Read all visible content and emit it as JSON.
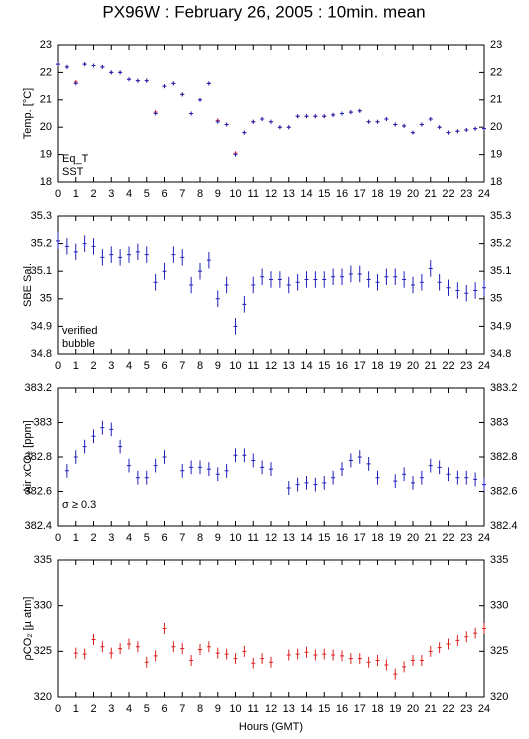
{
  "chart_data": [
    {
      "type": "scatter",
      "title": "PX96W : February 26, 2005 : 10min. mean",
      "ylabel": "Temp. [°C]",
      "x": [
        0,
        0.5,
        1,
        1.5,
        2,
        2.5,
        3,
        3.5,
        4,
        4.5,
        5,
        5.5,
        6,
        6.5,
        7,
        7.5,
        8,
        8.5,
        9,
        9.5,
        10,
        10.5,
        11,
        11.5,
        12,
        12.5,
        13,
        13.5,
        14,
        14.5,
        15,
        15.5,
        16,
        16.5,
        17,
        17.5,
        18,
        18.5,
        19,
        19.5,
        20,
        20.5,
        21,
        21.5,
        22,
        22.5,
        23,
        23.5,
        24
      ],
      "series": [
        {
          "name": "Eq_T",
          "color": "#dd2222",
          "values": [
            22.3,
            22.2,
            21.65,
            22.3,
            22.25,
            22.2,
            22.0,
            22.0,
            21.75,
            21.7,
            21.7,
            20.55,
            21.5,
            21.6,
            21.2,
            20.5,
            21.0,
            21.6,
            20.25,
            20.1,
            19.05,
            19.8,
            20.2,
            20.3,
            20.2,
            20.0,
            20.0,
            20.4,
            20.4,
            20.4,
            20.4,
            20.45,
            20.5,
            20.55,
            20.6,
            20.2,
            20.2,
            20.3,
            20.1,
            20.05,
            19.8,
            20.1,
            20.3,
            20.0,
            19.8,
            19.85,
            19.9,
            19.95,
            19.95
          ]
        },
        {
          "name": "SST",
          "color": "#2222bb",
          "values": [
            22.3,
            22.2,
            21.6,
            22.3,
            22.25,
            22.2,
            22.0,
            22.0,
            21.75,
            21.7,
            21.7,
            20.5,
            21.5,
            21.6,
            21.2,
            20.5,
            21.0,
            21.6,
            20.2,
            20.1,
            19.0,
            19.8,
            20.2,
            20.3,
            20.2,
            20.0,
            20.0,
            20.4,
            20.4,
            20.4,
            20.4,
            20.45,
            20.5,
            20.55,
            20.6,
            20.2,
            20.2,
            20.3,
            20.1,
            20.05,
            19.8,
            20.1,
            20.3,
            20.0,
            19.8,
            19.85,
            19.9,
            19.95,
            19.95
          ]
        }
      ],
      "xlim": [
        0,
        24
      ],
      "xticks": [
        0,
        1,
        2,
        3,
        4,
        5,
        6,
        7,
        8,
        9,
        10,
        11,
        12,
        13,
        14,
        15,
        16,
        17,
        18,
        19,
        20,
        21,
        22,
        23,
        24
      ],
      "ylim": [
        18,
        23
      ],
      "yticks": [
        18,
        19,
        20,
        21,
        22,
        23
      ],
      "legend": "lower left"
    },
    {
      "type": "errorbar",
      "ylabel": "SBE Sal.",
      "x": [
        0,
        0.5,
        1,
        1.5,
        2,
        2.5,
        3,
        3.5,
        4,
        4.5,
        5,
        5.5,
        6,
        6.5,
        7,
        7.5,
        8,
        8.5,
        9,
        9.5,
        10,
        10.5,
        11,
        11.5,
        12,
        12.5,
        13,
        13.5,
        14,
        14.5,
        15,
        15.5,
        16,
        16.5,
        17,
        17.5,
        18,
        18.5,
        19,
        19.5,
        20,
        20.5,
        21,
        21.5,
        22,
        22.5,
        23,
        23.5,
        24
      ],
      "series": [
        {
          "color": "#2222bb",
          "values": [
            35.21,
            35.19,
            35.17,
            35.2,
            35.19,
            35.15,
            35.16,
            35.15,
            35.16,
            35.17,
            35.16,
            35.06,
            35.1,
            35.16,
            35.15,
            35.05,
            35.1,
            35.14,
            35.0,
            35.05,
            34.9,
            34.98,
            35.05,
            35.08,
            35.07,
            35.07,
            35.05,
            35.06,
            35.07,
            35.07,
            35.07,
            35.08,
            35.08,
            35.09,
            35.09,
            35.07,
            35.06,
            35.08,
            35.08,
            35.07,
            35.05,
            35.06,
            35.11,
            35.06,
            35.04,
            35.03,
            35.02,
            35.03,
            35.04
          ],
          "errors": [
            0.03,
            0.03,
            0.03,
            0.03,
            0.03,
            0.03,
            0.03,
            0.03,
            0.03,
            0.03,
            0.03,
            0.03,
            0.03,
            0.03,
            0.03,
            0.03,
            0.03,
            0.03,
            0.03,
            0.03,
            0.03,
            0.03,
            0.03,
            0.03,
            0.03,
            0.03,
            0.03,
            0.03,
            0.03,
            0.03,
            0.03,
            0.03,
            0.03,
            0.03,
            0.03,
            0.03,
            0.03,
            0.03,
            0.03,
            0.03,
            0.03,
            0.03,
            0.03,
            0.03,
            0.03,
            0.03,
            0.03,
            0.03,
            0.03
          ]
        }
      ],
      "legend_entries": [
        {
          "label": "verified",
          "color": "#2222bb"
        },
        {
          "label": "bubble",
          "color": "#cc00cc"
        }
      ],
      "xlim": [
        0,
        24
      ],
      "xticks": [
        0,
        1,
        2,
        3,
        4,
        5,
        6,
        7,
        8,
        9,
        10,
        11,
        12,
        13,
        14,
        15,
        16,
        17,
        18,
        19,
        20,
        21,
        22,
        23,
        24
      ],
      "ylim": [
        34.8,
        35.3
      ],
      "yticks": [
        34.8,
        34.9,
        35,
        35.1,
        35.2,
        35.3
      ],
      "legend": "lower left"
    },
    {
      "type": "errorbar",
      "ylabel": "Air xCO₂ [ppm]",
      "annotation": "σ ≥ 0.3",
      "annotation_color": "#cc00cc",
      "x": [
        0,
        0.5,
        1,
        1.5,
        2,
        2.5,
        3,
        3.5,
        4,
        4.5,
        5,
        5.5,
        6,
        6.5,
        7,
        7.5,
        8,
        8.5,
        9,
        9.5,
        10,
        10.5,
        11,
        11.5,
        12,
        12.5,
        13,
        13.5,
        14,
        14.5,
        15,
        15.5,
        16,
        16.5,
        17,
        17.5,
        18,
        18.5,
        19,
        19.5,
        20,
        20.5,
        21,
        21.5,
        22,
        22.5,
        23,
        23.5,
        24
      ],
      "series": [
        {
          "color": "#2222bb",
          "values": [
            null,
            382.72,
            382.8,
            382.86,
            382.92,
            382.97,
            382.96,
            382.86,
            382.75,
            382.68,
            382.68,
            382.75,
            382.8,
            null,
            382.72,
            382.74,
            382.74,
            382.73,
            382.7,
            382.72,
            382.81,
            382.81,
            382.78,
            382.74,
            382.73,
            null,
            382.62,
            382.64,
            382.65,
            382.64,
            382.65,
            382.68,
            382.73,
            382.78,
            382.8,
            382.76,
            382.68,
            null,
            382.66,
            382.7,
            382.65,
            382.68,
            382.75,
            382.74,
            382.7,
            382.68,
            382.68,
            382.67,
            382.64
          ],
          "errors": [
            null,
            0.04,
            0.04,
            0.04,
            0.04,
            0.04,
            0.04,
            0.04,
            0.04,
            0.04,
            0.04,
            0.04,
            0.04,
            null,
            0.04,
            0.04,
            0.04,
            0.04,
            0.04,
            0.04,
            0.04,
            0.04,
            0.04,
            0.04,
            0.04,
            null,
            0.04,
            0.04,
            0.04,
            0.04,
            0.04,
            0.04,
            0.04,
            0.04,
            0.04,
            0.04,
            0.04,
            null,
            0.04,
            0.04,
            0.04,
            0.04,
            0.04,
            0.04,
            0.04,
            0.04,
            0.04,
            0.04,
            0.04
          ]
        }
      ],
      "xlim": [
        0,
        24
      ],
      "xticks": [
        0,
        1,
        2,
        3,
        4,
        5,
        6,
        7,
        8,
        9,
        10,
        11,
        12,
        13,
        14,
        15,
        16,
        17,
        18,
        19,
        20,
        21,
        22,
        23,
        24
      ],
      "ylim": [
        382.4,
        383.2
      ],
      "yticks": [
        382.4,
        382.6,
        382.8,
        383,
        383.2
      ]
    },
    {
      "type": "errorbar",
      "ylabel": "ρCO₂ [µ atm]",
      "xlabel": "Hours (GMT)",
      "x": [
        0,
        0.5,
        1,
        1.5,
        2,
        2.5,
        3,
        3.5,
        4,
        4.5,
        5,
        5.5,
        6,
        6.5,
        7,
        7.5,
        8,
        8.5,
        9,
        9.5,
        10,
        10.5,
        11,
        11.5,
        12,
        12.5,
        13,
        13.5,
        14,
        14.5,
        15,
        15.5,
        16,
        16.5,
        17,
        17.5,
        18,
        18.5,
        19,
        19.5,
        20,
        20.5,
        21,
        21.5,
        22,
        22.5,
        23,
        23.5,
        24
      ],
      "series": [
        {
          "color": "#dd2222",
          "values": [
            null,
            null,
            324.8,
            324.7,
            326.3,
            325.5,
            324.8,
            325.3,
            325.8,
            325.5,
            323.8,
            324.5,
            327.5,
            325.5,
            325.3,
            324,
            325.2,
            325.5,
            324.8,
            324.7,
            324.2,
            325,
            323.7,
            324.2,
            323.8,
            null,
            324.6,
            324.7,
            324.9,
            324.6,
            324.7,
            324.6,
            324.5,
            324.2,
            324.2,
            323.8,
            324,
            323.5,
            322.5,
            323.3,
            324,
            324,
            325,
            325.4,
            325.8,
            326.2,
            326.6,
            327,
            327.5
          ],
          "errors": [
            null,
            null,
            0.6,
            0.6,
            0.6,
            0.6,
            0.6,
            0.6,
            0.6,
            0.6,
            0.6,
            0.6,
            0.6,
            0.6,
            0.6,
            0.6,
            0.6,
            0.6,
            0.6,
            0.6,
            0.6,
            0.6,
            0.6,
            0.6,
            0.6,
            null,
            0.6,
            0.6,
            0.6,
            0.6,
            0.6,
            0.6,
            0.6,
            0.6,
            0.6,
            0.6,
            0.6,
            0.6,
            0.6,
            0.6,
            0.6,
            0.6,
            0.6,
            0.6,
            0.6,
            0.6,
            0.6,
            0.6,
            0.6
          ]
        }
      ],
      "xlim": [
        0,
        24
      ],
      "xticks": [
        0,
        1,
        2,
        3,
        4,
        5,
        6,
        7,
        8,
        9,
        10,
        11,
        12,
        13,
        14,
        15,
        16,
        17,
        18,
        19,
        20,
        21,
        22,
        23,
        24
      ],
      "ylim": [
        320,
        335
      ],
      "yticks": [
        320,
        325,
        330,
        335
      ]
    }
  ]
}
